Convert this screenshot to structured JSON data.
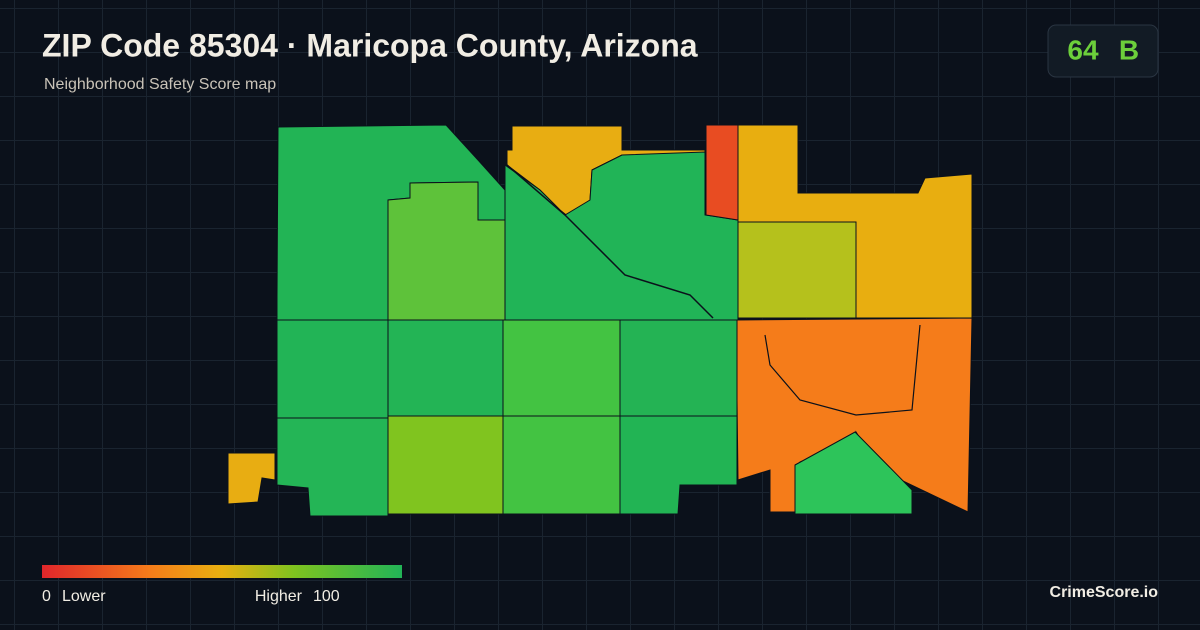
{
  "header": {
    "title": "ZIP Code 85304 · Maricopa County, Arizona",
    "subtitle": "Neighborhood Safety Score map"
  },
  "score_badge": {
    "score": 64,
    "grade": "B"
  },
  "legend": {
    "min": 0,
    "min_label": "Lower",
    "max_label": "Higher",
    "max": 100
  },
  "brand": "CrimeScore.io"
}
